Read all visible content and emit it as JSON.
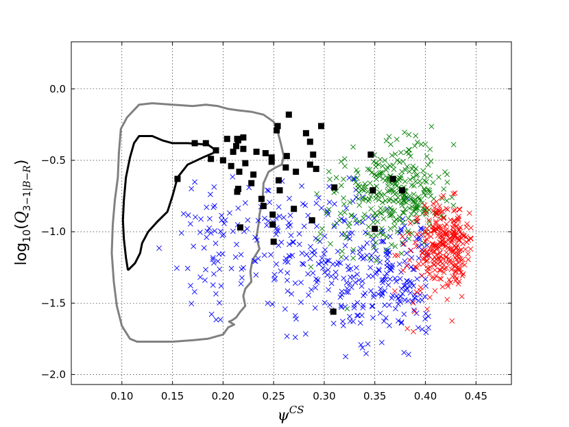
{
  "chart_data": {
    "type": "scatter",
    "title": "",
    "xlabel": "ψ^CS",
    "ylabel": "log10(Q3−1|B−R)",
    "xlim": [
      0.05,
      0.485
    ],
    "ylim": [
      -2.07,
      0.33
    ],
    "xticks": [
      0.1,
      0.15,
      0.2,
      0.25,
      0.3,
      0.35,
      0.4,
      0.45
    ],
    "xtick_labels": [
      "0.10",
      "0.15",
      "0.20",
      "0.25",
      "0.30",
      "0.35",
      "0.40",
      "0.45"
    ],
    "yticks": [
      0.0,
      -0.5,
      -1.0,
      -1.5,
      -2.0
    ],
    "ytick_labels": [
      "0.0",
      "−0.5",
      "−1.0",
      "−1.5",
      "−2.0"
    ],
    "grid": true,
    "legend": "none",
    "colors": {
      "blue": "#0000ff",
      "green": "#007f00",
      "red": "#ff0000",
      "black": "#000000",
      "contour_outer": "#808080",
      "contour_inner": "#000000"
    },
    "series": [
      {
        "marker": "x",
        "color": "#0000ff",
        "generator": {
          "seed": 11,
          "n": 430,
          "clusters": [
            {
              "mx": 0.36,
              "sx": 0.038,
              "my": -1.3,
              "sy": 0.25,
              "w": 0.55
            },
            {
              "mx": 0.28,
              "sx": 0.035,
              "my": -1.1,
              "sy": 0.28,
              "w": 0.3
            },
            {
              "mx": 0.2,
              "sx": 0.03,
              "my": -1.0,
              "sy": 0.3,
              "w": 0.15
            }
          ],
          "xrange": [
            0.13,
            0.405
          ],
          "yrange": [
            -1.95,
            -0.58
          ]
        }
      },
      {
        "marker": "x",
        "color": "#007f00",
        "generator": {
          "seed": 23,
          "n": 320,
          "clusters": [
            {
              "mx": 0.375,
              "sx": 0.028,
              "my": -0.72,
              "sy": 0.16,
              "w": 0.8
            },
            {
              "mx": 0.34,
              "sx": 0.03,
              "my": -0.95,
              "sy": 0.22,
              "w": 0.2
            }
          ],
          "xrange": [
            0.27,
            0.43
          ],
          "yrange": [
            -1.62,
            -0.2
          ]
        }
      },
      {
        "marker": "x",
        "color": "#ff0000",
        "generator": {
          "seed": 37,
          "n": 290,
          "clusters": [
            {
              "mx": 0.42,
              "sx": 0.014,
              "my": -1.08,
              "sy": 0.14,
              "w": 0.85
            },
            {
              "mx": 0.395,
              "sx": 0.018,
              "my": -1.28,
              "sy": 0.2,
              "w": 0.15
            }
          ],
          "xrange": [
            0.355,
            0.445
          ],
          "yrange": [
            -1.72,
            -0.66
          ]
        }
      },
      {
        "marker": "square",
        "color": "#000000",
        "points": [
          [
            0.155,
            -0.63
          ],
          [
            0.172,
            -0.38
          ],
          [
            0.183,
            -0.38
          ],
          [
            0.188,
            -0.49
          ],
          [
            0.193,
            -0.43
          ],
          [
            0.2,
            -0.5
          ],
          [
            0.204,
            -0.35
          ],
          [
            0.208,
            -0.54
          ],
          [
            0.21,
            -0.44
          ],
          [
            0.213,
            -0.4
          ],
          [
            0.214,
            -0.35
          ],
          [
            0.215,
            -0.36
          ],
          [
            0.216,
            -0.58
          ],
          [
            0.215,
            -0.7
          ],
          [
            0.214,
            -0.72
          ],
          [
            0.217,
            -0.97
          ],
          [
            0.22,
            -0.42
          ],
          [
            0.22,
            -0.34
          ],
          [
            0.222,
            -0.52
          ],
          [
            0.228,
            -0.66
          ],
          [
            0.23,
            -0.6
          ],
          [
            0.233,
            -0.44
          ],
          [
            0.238,
            -0.77
          ],
          [
            0.24,
            -0.82
          ],
          [
            0.242,
            -0.45
          ],
          [
            0.248,
            -0.48
          ],
          [
            0.248,
            -0.51
          ],
          [
            0.249,
            -0.88
          ],
          [
            0.249,
            -0.95
          ],
          [
            0.25,
            -1.07
          ],
          [
            0.253,
            -0.29
          ],
          [
            0.254,
            -0.26
          ],
          [
            0.255,
            -0.64
          ],
          [
            0.256,
            -0.71
          ],
          [
            0.262,
            -0.55
          ],
          [
            0.263,
            -0.47
          ],
          [
            0.265,
            -0.18
          ],
          [
            0.27,
            -0.84
          ],
          [
            0.272,
            -0.58
          ],
          [
            0.282,
            -0.31
          ],
          [
            0.286,
            -0.37
          ],
          [
            0.286,
            -0.53
          ],
          [
            0.288,
            -0.92
          ],
          [
            0.289,
            -0.46
          ],
          [
            0.292,
            -0.56
          ],
          [
            0.297,
            -0.26
          ],
          [
            0.309,
            -1.56
          ],
          [
            0.31,
            -0.69
          ],
          [
            0.346,
            -0.46
          ],
          [
            0.348,
            -0.71
          ],
          [
            0.35,
            -0.98
          ],
          [
            0.368,
            -0.63
          ],
          [
            0.377,
            -0.71
          ]
        ]
      },
      {
        "type": "contour",
        "color": "#808080",
        "points": [
          [
            0.096,
            -0.62
          ],
          [
            0.097,
            -0.45
          ],
          [
            0.099,
            -0.28
          ],
          [
            0.105,
            -0.2
          ],
          [
            0.117,
            -0.11
          ],
          [
            0.13,
            -0.1
          ],
          [
            0.15,
            -0.11
          ],
          [
            0.17,
            -0.12
          ],
          [
            0.183,
            -0.11
          ],
          [
            0.195,
            -0.12
          ],
          [
            0.205,
            -0.14
          ],
          [
            0.215,
            -0.15
          ],
          [
            0.228,
            -0.16
          ],
          [
            0.24,
            -0.18
          ],
          [
            0.25,
            -0.23
          ],
          [
            0.254,
            -0.3
          ],
          [
            0.257,
            -0.38
          ],
          [
            0.26,
            -0.47
          ],
          [
            0.258,
            -0.53
          ],
          [
            0.252,
            -0.55
          ],
          [
            0.245,
            -0.58
          ],
          [
            0.24,
            -0.66
          ],
          [
            0.239,
            -0.78
          ],
          [
            0.236,
            -0.88
          ],
          [
            0.235,
            -0.95
          ],
          [
            0.233,
            -1.04
          ],
          [
            0.236,
            -1.12
          ],
          [
            0.229,
            -1.2
          ],
          [
            0.227,
            -1.28
          ],
          [
            0.228,
            -1.35
          ],
          [
            0.222,
            -1.4
          ],
          [
            0.22,
            -1.45
          ],
          [
            0.222,
            -1.52
          ],
          [
            0.217,
            -1.56
          ],
          [
            0.213,
            -1.6
          ],
          [
            0.209,
            -1.62
          ],
          [
            0.206,
            -1.63
          ],
          [
            0.211,
            -1.65
          ],
          [
            0.205,
            -1.67
          ],
          [
            0.2,
            -1.72
          ],
          [
            0.185,
            -1.75
          ],
          [
            0.17,
            -1.76
          ],
          [
            0.15,
            -1.77
          ],
          [
            0.13,
            -1.77
          ],
          [
            0.115,
            -1.77
          ],
          [
            0.108,
            -1.75
          ],
          [
            0.1,
            -1.66
          ],
          [
            0.095,
            -1.52
          ],
          [
            0.092,
            -1.35
          ],
          [
            0.09,
            -1.15
          ],
          [
            0.091,
            -0.95
          ],
          [
            0.093,
            -0.78
          ],
          [
            0.096,
            -0.62
          ]
        ]
      },
      {
        "type": "contour",
        "color": "#000000",
        "points": [
          [
            0.106,
            -1.27
          ],
          [
            0.104,
            -1.18
          ],
          [
            0.102,
            -1.05
          ],
          [
            0.101,
            -0.92
          ],
          [
            0.102,
            -0.78
          ],
          [
            0.104,
            -0.62
          ],
          [
            0.108,
            -0.48
          ],
          [
            0.112,
            -0.38
          ],
          [
            0.117,
            -0.33
          ],
          [
            0.13,
            -0.33
          ],
          [
            0.14,
            -0.36
          ],
          [
            0.15,
            -0.38
          ],
          [
            0.165,
            -0.38
          ],
          [
            0.185,
            -0.39
          ],
          [
            0.193,
            -0.43
          ],
          [
            0.19,
            -0.45
          ],
          [
            0.18,
            -0.48
          ],
          [
            0.165,
            -0.53
          ],
          [
            0.155,
            -0.62
          ],
          [
            0.15,
            -0.75
          ],
          [
            0.145,
            -0.86
          ],
          [
            0.135,
            -0.93
          ],
          [
            0.126,
            -1.0
          ],
          [
            0.12,
            -1.08
          ],
          [
            0.118,
            -1.15
          ],
          [
            0.113,
            -1.22
          ],
          [
            0.106,
            -1.27
          ]
        ]
      }
    ]
  }
}
